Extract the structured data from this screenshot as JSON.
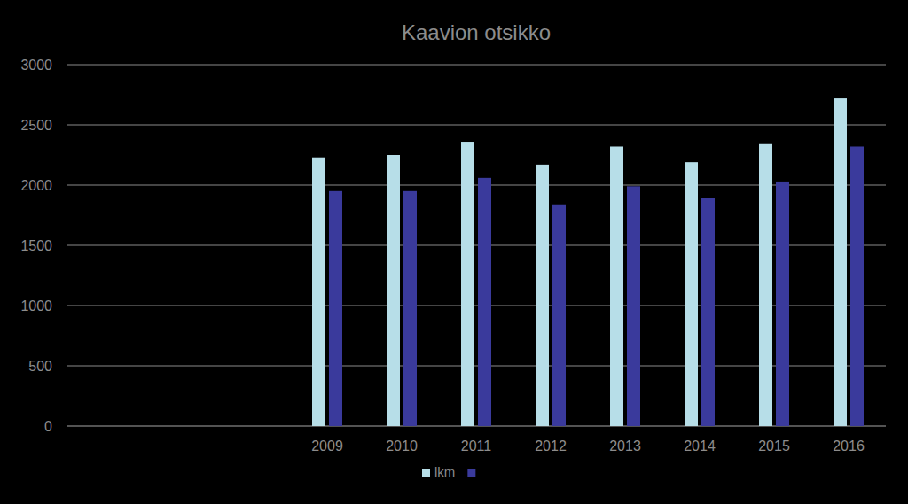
{
  "chart_data": {
    "type": "bar",
    "title": "Kaavion otsikko",
    "categories": [
      null,
      null,
      null,
      "2009",
      "2010",
      "2011",
      "2012",
      "2013",
      "2014",
      "2015",
      "2016"
    ],
    "series": [
      {
        "name": "lkm",
        "color": "#b7dee8",
        "values": [
          null,
          null,
          null,
          2230,
          2250,
          2360,
          2170,
          2320,
          2190,
          2340,
          2720
        ]
      },
      {
        "color": "#3a3a9c",
        "values": [
          null,
          null,
          null,
          1950,
          1950,
          2060,
          1840,
          1990,
          1890,
          2030,
          2320
        ]
      }
    ],
    "ylim": [
      0,
      3000
    ],
    "yticks": [
      0,
      500,
      1000,
      1500,
      2000,
      2500,
      3000
    ],
    "grid": true,
    "legend": "bottom"
  }
}
